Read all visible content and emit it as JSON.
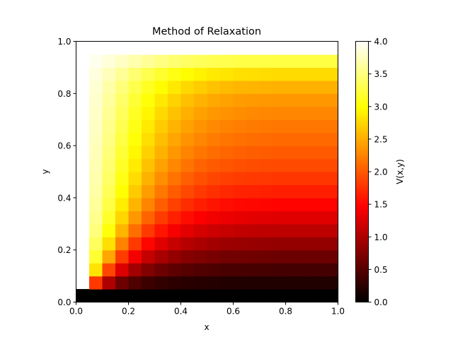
{
  "chart_data": {
    "type": "heatmap",
    "title": "Method of Relaxation",
    "xlabel": "x",
    "ylabel": "y",
    "colorbar_label": "V(x,y)",
    "colormap": "hot",
    "xlim": [
      0,
      1
    ],
    "ylim": [
      0,
      1
    ],
    "clim": [
      0,
      4
    ],
    "x_ticks": [
      "0.0",
      "0.2",
      "0.4",
      "0.6",
      "0.8",
      "1.0"
    ],
    "y_ticks": [
      "0.0",
      "0.2",
      "0.4",
      "0.6",
      "0.8",
      "1.0"
    ],
    "colorbar_ticks": [
      "0.0",
      "0.5",
      "1.0",
      "1.5",
      "2.0",
      "2.5",
      "3.0",
      "3.5",
      "4.0"
    ],
    "grid": false,
    "legend": "none",
    "grid_shape": [
      20,
      20
    ],
    "cell_size": 0.05,
    "boundary": {
      "top": 4,
      "left": 4,
      "bottom": 0,
      "right": "blank"
    },
    "values": [
      [
        0.0,
        0.0,
        0.0,
        0.0,
        0.0,
        0.0,
        0.0,
        0.0,
        0.0,
        0.0,
        0.0,
        0.0,
        0.0,
        0.0,
        0.0,
        0.0,
        0.0,
        0.0,
        0.0,
        0.0
      ],
      [
        null,
        1.8,
        1.0,
        0.62,
        0.45,
        0.35,
        0.29,
        0.26,
        0.23,
        0.22,
        0.21,
        0.2,
        0.19,
        0.19,
        0.19,
        0.19,
        0.19,
        0.19,
        0.19,
        0.19
      ],
      [
        null,
        2.82,
        1.88,
        1.26,
        0.93,
        0.74,
        0.62,
        0.54,
        0.49,
        0.46,
        0.44,
        0.42,
        0.41,
        0.4,
        0.4,
        0.39,
        0.39,
        0.39,
        0.39,
        0.39
      ],
      [
        null,
        3.18,
        2.46,
        1.82,
        1.4,
        1.13,
        0.96,
        0.85,
        0.77,
        0.72,
        0.69,
        0.66,
        0.65,
        0.64,
        0.63,
        0.62,
        0.62,
        0.62,
        0.62,
        0.62
      ],
      [
        null,
        3.36,
        2.8,
        2.24,
        1.8,
        1.49,
        1.28,
        1.14,
        1.04,
        0.98,
        0.93,
        0.9,
        0.88,
        0.87,
        0.86,
        0.85,
        0.85,
        0.85,
        0.85,
        0.85
      ],
      [
        null,
        3.48,
        3.02,
        2.54,
        2.12,
        1.8,
        1.58,
        1.41,
        1.3,
        1.22,
        1.17,
        1.14,
        1.11,
        1.1,
        1.09,
        1.08,
        1.08,
        1.08,
        1.08,
        1.08
      ],
      [
        null,
        3.55,
        3.16,
        2.74,
        2.36,
        2.05,
        1.82,
        1.65,
        1.53,
        1.44,
        1.39,
        1.35,
        1.33,
        1.31,
        1.3,
        1.29,
        1.29,
        1.29,
        1.29,
        1.29
      ],
      [
        null,
        3.6,
        3.26,
        2.88,
        2.54,
        2.25,
        2.02,
        1.85,
        1.72,
        1.64,
        1.58,
        1.54,
        1.51,
        1.5,
        1.49,
        1.48,
        1.48,
        1.48,
        1.48,
        1.48
      ],
      [
        null,
        3.64,
        3.33,
        2.99,
        2.67,
        2.4,
        2.18,
        2.01,
        1.89,
        1.8,
        1.74,
        1.7,
        1.67,
        1.66,
        1.65,
        1.64,
        1.64,
        1.64,
        1.64,
        1.64
      ],
      [
        null,
        3.67,
        3.39,
        3.07,
        2.78,
        2.52,
        2.31,
        2.15,
        2.03,
        1.94,
        1.88,
        1.84,
        1.82,
        1.8,
        1.79,
        1.78,
        1.78,
        1.78,
        1.78,
        1.78
      ],
      [
        null,
        3.7,
        3.43,
        3.14,
        2.87,
        2.62,
        2.42,
        2.27,
        2.15,
        2.06,
        2.0,
        1.96,
        1.94,
        1.92,
        1.91,
        1.9,
        1.9,
        1.9,
        1.9,
        1.9
      ],
      [
        null,
        3.72,
        3.47,
        3.2,
        2.94,
        2.71,
        2.52,
        2.37,
        2.25,
        2.17,
        2.11,
        2.07,
        2.04,
        2.02,
        2.01,
        2.0,
        2.0,
        2.0,
        2.0,
        2.0
      ],
      [
        null,
        3.74,
        3.51,
        3.25,
        3.01,
        2.79,
        2.6,
        2.46,
        2.34,
        2.26,
        2.2,
        2.16,
        2.13,
        2.11,
        2.1,
        2.09,
        2.09,
        2.09,
        2.09,
        2.09
      ],
      [
        null,
        3.76,
        3.54,
        3.3,
        3.07,
        2.86,
        2.68,
        2.54,
        2.43,
        2.34,
        2.28,
        2.24,
        2.21,
        2.19,
        2.18,
        2.17,
        2.17,
        2.17,
        2.17,
        2.17
      ],
      [
        null,
        3.78,
        3.57,
        3.35,
        3.13,
        2.93,
        2.76,
        2.62,
        2.51,
        2.43,
        2.37,
        2.33,
        2.3,
        2.28,
        2.27,
        2.26,
        2.26,
        2.26,
        2.26,
        2.26
      ],
      [
        null,
        3.8,
        3.61,
        3.4,
        3.2,
        3.01,
        2.85,
        2.72,
        2.61,
        2.53,
        2.47,
        2.43,
        2.4,
        2.38,
        2.37,
        2.36,
        2.36,
        2.36,
        2.36,
        2.36
      ],
      [
        null,
        3.83,
        3.66,
        3.47,
        3.29,
        3.12,
        2.97,
        2.85,
        2.75,
        2.68,
        2.62,
        2.58,
        2.55,
        2.54,
        2.53,
        2.52,
        2.52,
        2.52,
        2.52,
        2.52
      ],
      [
        null,
        3.87,
        3.73,
        3.58,
        3.43,
        3.29,
        3.17,
        3.06,
        2.98,
        2.91,
        2.86,
        2.83,
        2.8,
        2.79,
        2.78,
        2.77,
        2.77,
        2.77,
        2.77,
        2.77
      ],
      [
        null,
        3.93,
        3.85,
        3.76,
        3.67,
        3.58,
        3.5,
        3.44,
        3.38,
        3.34,
        3.31,
        3.29,
        3.27,
        3.26,
        3.26,
        3.25,
        3.25,
        3.25,
        3.25,
        3.25
      ],
      [
        null,
        4.0,
        4.0,
        4.0,
        4.0,
        4.0,
        4.0,
        4.0,
        4.0,
        4.0,
        4.0,
        4.0,
        4.0,
        4.0,
        4.0,
        4.0,
        4.0,
        4.0,
        4.0,
        4.0
      ]
    ]
  }
}
